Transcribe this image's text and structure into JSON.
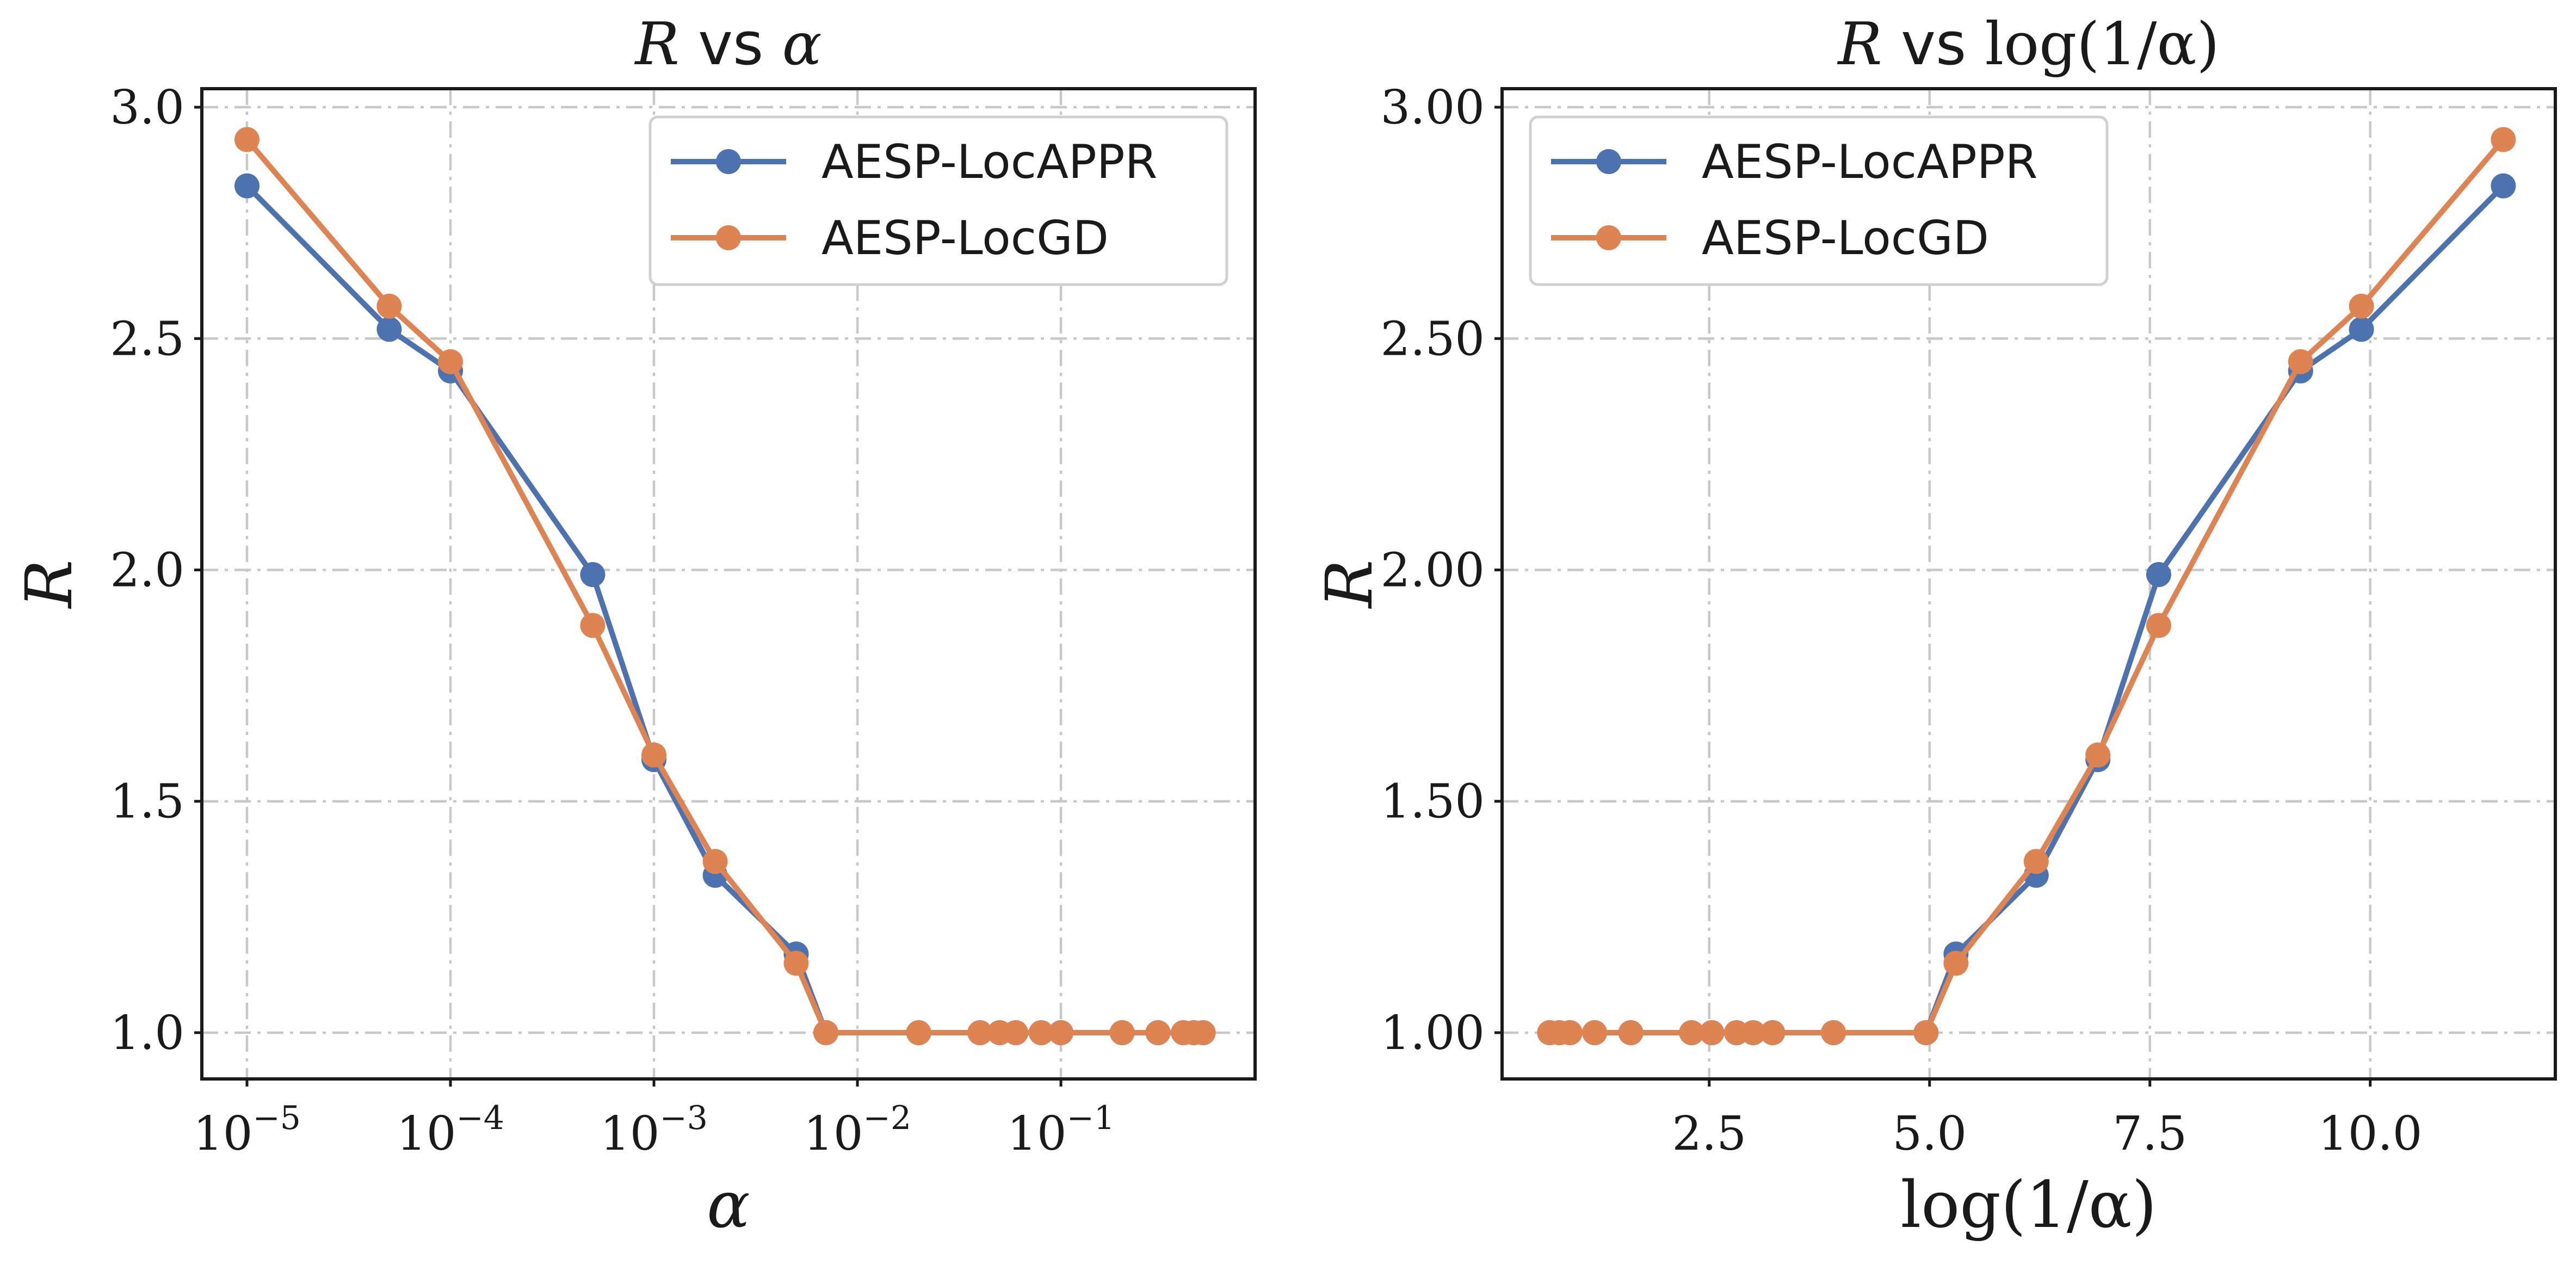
{
  "chart_data": [
    {
      "type": "line",
      "title_parts": [
        "R",
        "vs",
        "α"
      ],
      "xlabel": "α",
      "ylabel": "R",
      "xscale": "log",
      "xlim": [
        6e-06,
        0.9
      ],
      "ylim": [
        0.9,
        3.04
      ],
      "x_ticks": [
        1e-05,
        0.0001,
        0.001,
        0.01,
        0.1
      ],
      "x_tick_labels": [
        {
          "base": "10",
          "exp": "−5"
        },
        {
          "base": "10",
          "exp": "−4"
        },
        {
          "base": "10",
          "exp": "−3"
        },
        {
          "base": "10",
          "exp": "−2"
        },
        {
          "base": "10",
          "exp": "−1"
        }
      ],
      "y_ticks": [
        1.0,
        1.5,
        2.0,
        2.5,
        3.0
      ],
      "y_tick_labels": [
        "1.0",
        "1.5",
        "2.0",
        "2.5",
        "3.0"
      ],
      "grid": true,
      "legend_position": "top-right",
      "series": [
        {
          "name": "AESP-LocAPPR",
          "color": "#4c72b0",
          "x": [
            1e-05,
            5e-05,
            0.0001,
            0.0005,
            0.001,
            0.002,
            0.005,
            0.007,
            0.02,
            0.04,
            0.05,
            0.06,
            0.08,
            0.1,
            0.2,
            0.3,
            0.4,
            0.45,
            0.5
          ],
          "y": [
            2.83,
            2.52,
            2.43,
            1.99,
            1.59,
            1.34,
            1.17,
            1.0,
            1.0,
            1.0,
            1.0,
            1.0,
            1.0,
            1.0,
            1.0,
            1.0,
            1.0,
            1.0,
            1.0
          ]
        },
        {
          "name": "AESP-LocGD",
          "color": "#dd8452",
          "x": [
            1e-05,
            5e-05,
            0.0001,
            0.0005,
            0.001,
            0.002,
            0.005,
            0.007,
            0.02,
            0.04,
            0.05,
            0.06,
            0.08,
            0.1,
            0.2,
            0.3,
            0.4,
            0.45,
            0.5
          ],
          "y": [
            2.93,
            2.57,
            2.45,
            1.88,
            1.6,
            1.37,
            1.15,
            1.0,
            1.0,
            1.0,
            1.0,
            1.0,
            1.0,
            1.0,
            1.0,
            1.0,
            1.0,
            1.0,
            1.0
          ]
        }
      ]
    },
    {
      "type": "line",
      "title_parts": [
        "R",
        "vs",
        "log(1/α)"
      ],
      "xlabel": "log(1/α)",
      "ylabel": "R",
      "xscale": "linear",
      "xlim": [
        0.15,
        12.1
      ],
      "ylim": [
        0.9,
        3.04
      ],
      "x_ticks": [
        2.5,
        5.0,
        7.5,
        10.0
      ],
      "x_tick_labels": [
        "2.5",
        "5.0",
        "7.5",
        "10.0"
      ],
      "y_ticks": [
        1.0,
        1.5,
        2.0,
        2.5,
        3.0
      ],
      "y_tick_labels": [
        "1.00",
        "1.50",
        "2.00",
        "2.50",
        "3.00"
      ],
      "grid": true,
      "legend_position": "top-left",
      "series": [
        {
          "name": "AESP-LocAPPR",
          "color": "#4c72b0",
          "x": [
            0.69,
            0.8,
            0.92,
            1.2,
            1.61,
            2.3,
            2.53,
            2.81,
            3.0,
            3.22,
            3.91,
            4.96,
            5.3,
            6.21,
            6.91,
            7.6,
            9.21,
            9.9,
            11.51
          ],
          "y": [
            1.0,
            1.0,
            1.0,
            1.0,
            1.0,
            1.0,
            1.0,
            1.0,
            1.0,
            1.0,
            1.0,
            1.0,
            1.17,
            1.34,
            1.59,
            1.99,
            2.43,
            2.52,
            2.83
          ]
        },
        {
          "name": "AESP-LocGD",
          "color": "#dd8452",
          "x": [
            0.69,
            0.8,
            0.92,
            1.2,
            1.61,
            2.3,
            2.53,
            2.81,
            3.0,
            3.22,
            3.91,
            4.96,
            5.3,
            6.21,
            6.91,
            7.6,
            9.21,
            9.9,
            11.51
          ],
          "y": [
            1.0,
            1.0,
            1.0,
            1.0,
            1.0,
            1.0,
            1.0,
            1.0,
            1.0,
            1.0,
            1.0,
            1.0,
            1.15,
            1.37,
            1.6,
            1.88,
            2.45,
            2.57,
            2.93
          ]
        }
      ]
    }
  ]
}
